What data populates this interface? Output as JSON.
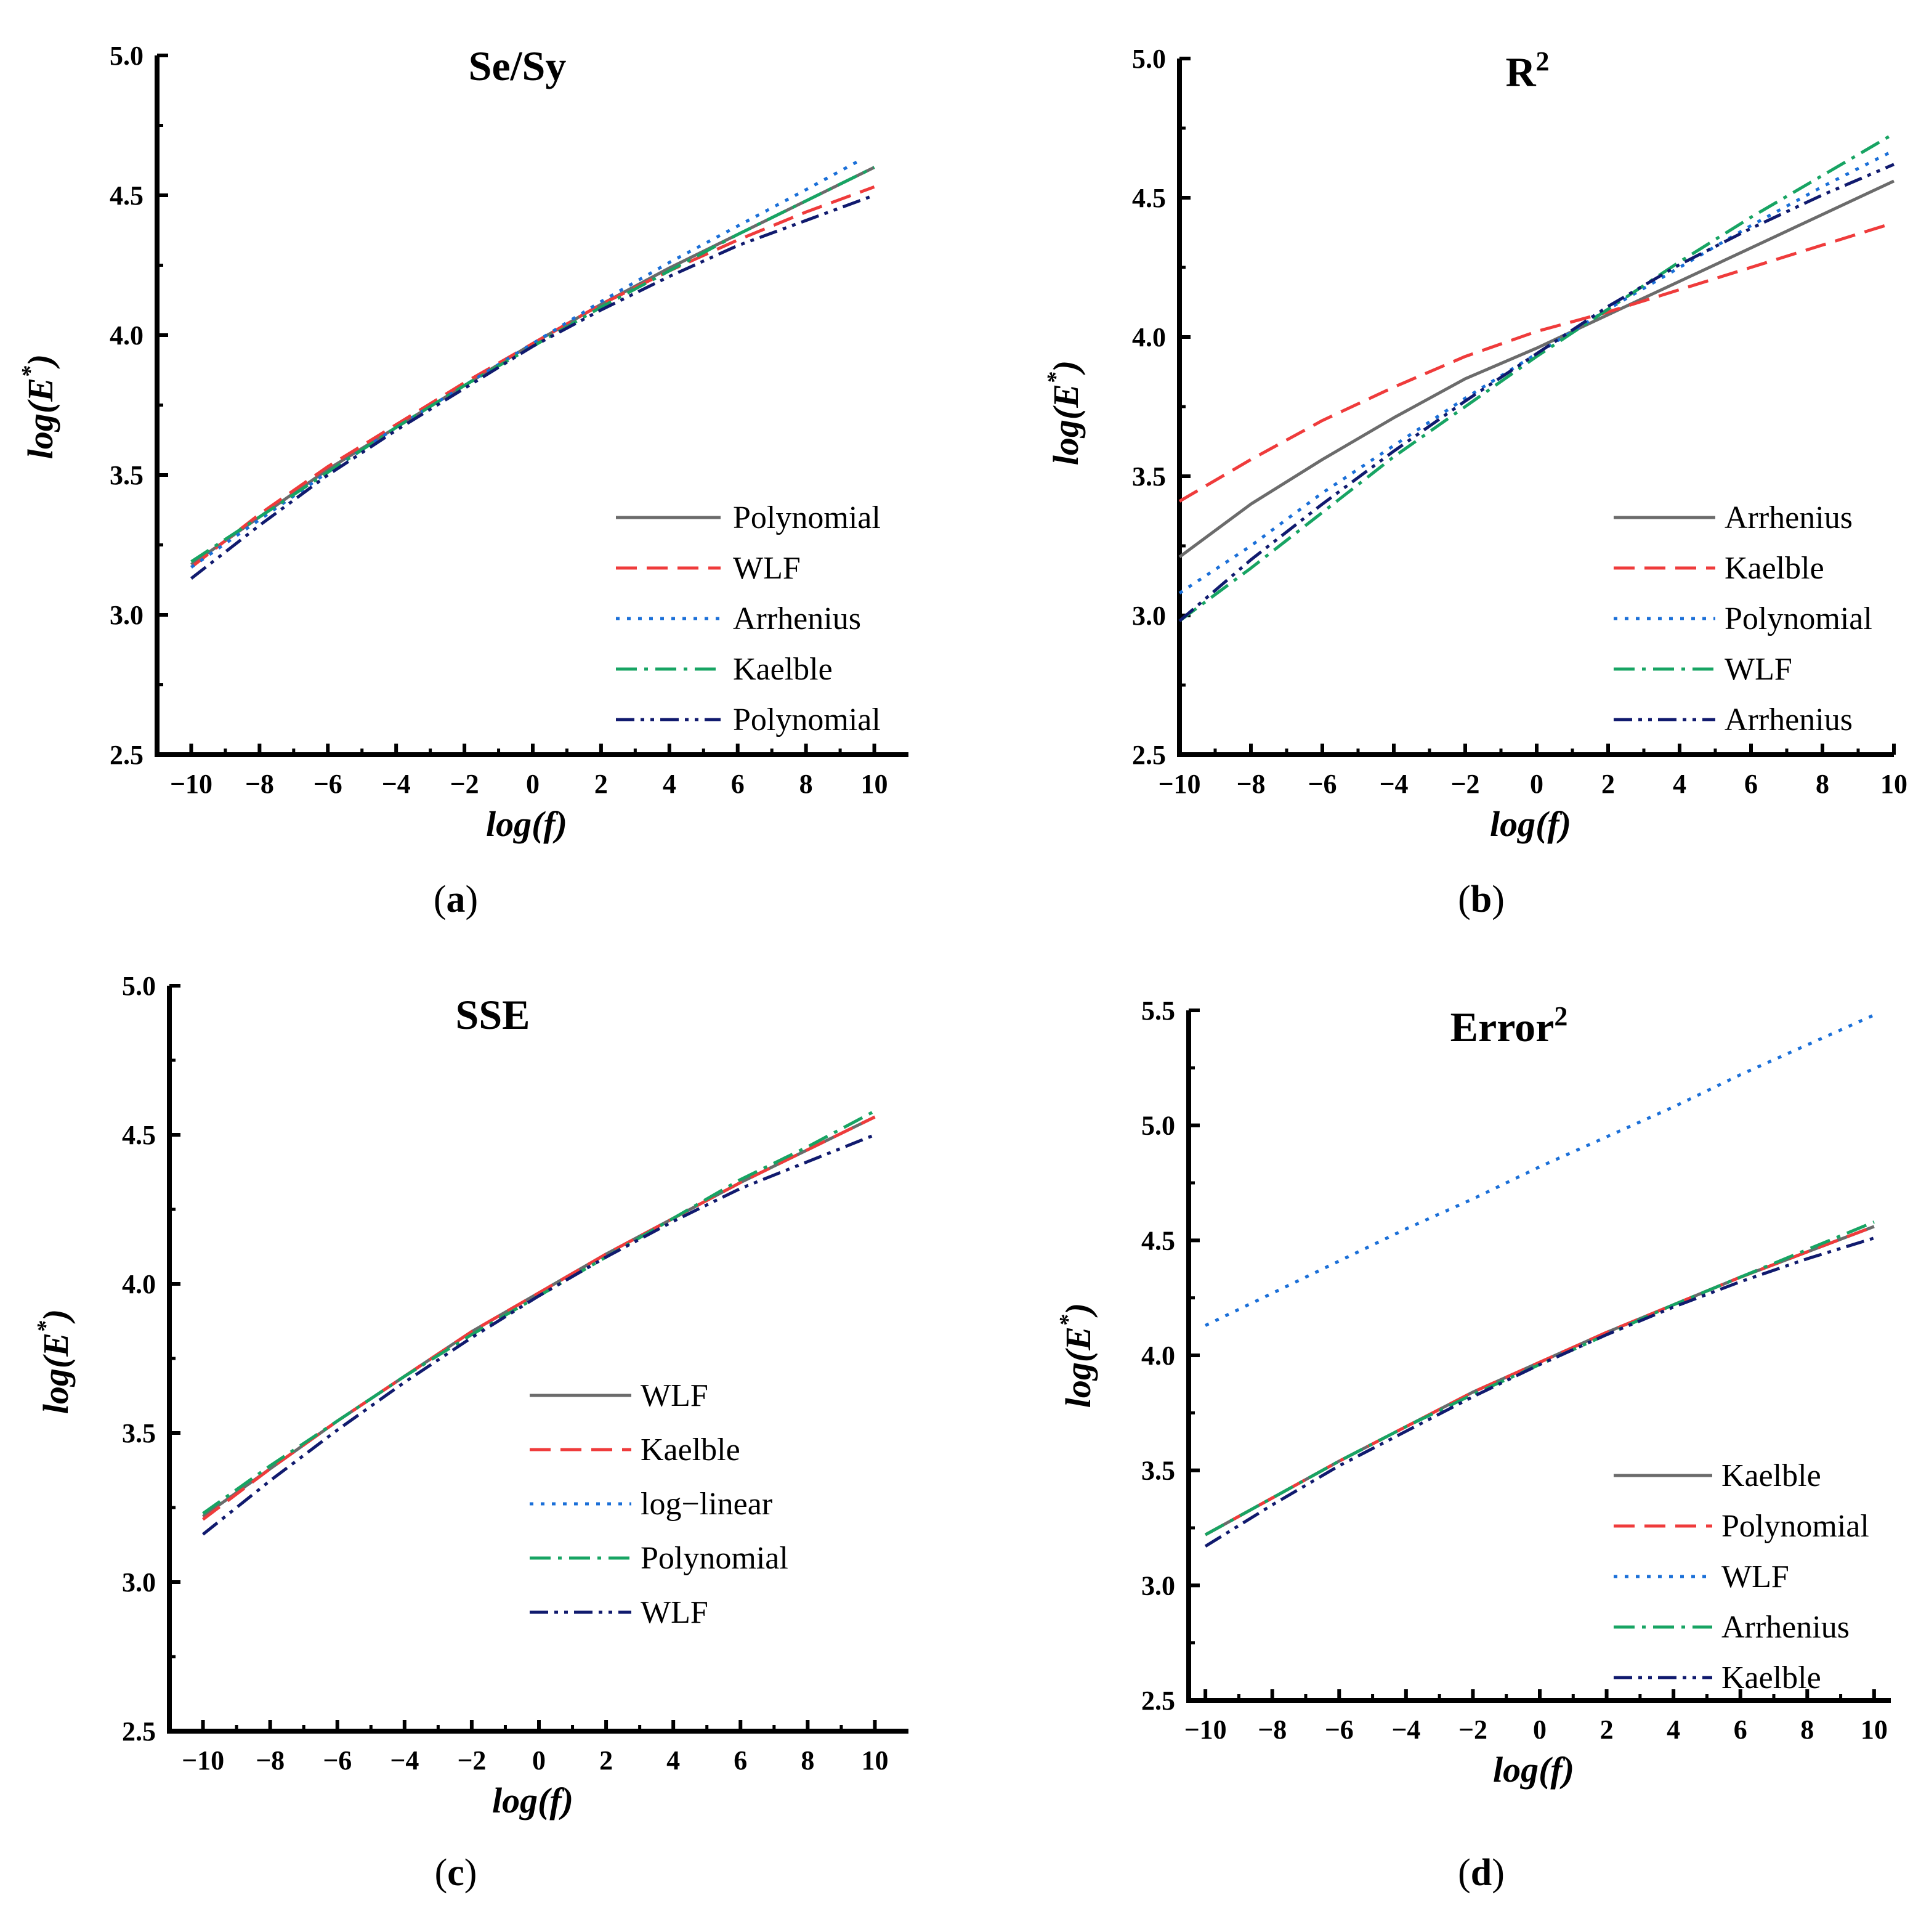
{
  "colors": {
    "solid": "#6b6b6b",
    "dashed": "#ef3b3b",
    "dotted": "#1a6fd8",
    "dashdot": "#17a463",
    "dashdotdot": "#101a6e"
  },
  "chart_data": [
    {
      "type": "line",
      "caption_letter": "a",
      "title": "Se/Sy",
      "xlabel": "log(f)",
      "ylabel_base": "log(E",
      "ylabel_sup": "*",
      "ylabel_tail": ")",
      "xlim": [
        -11,
        11
      ],
      "ylim": [
        2.5,
        5.0
      ],
      "xticks": [
        -10,
        -8,
        -6,
        -4,
        -2,
        0,
        2,
        4,
        6,
        8,
        10
      ],
      "yticks": [
        2.5,
        3.0,
        3.5,
        4.0,
        4.5,
        5.0
      ],
      "xtick_labels": [
        "−10",
        "−8",
        "−6",
        "−4",
        "−2",
        "0",
        "2",
        "4",
        "6",
        "8",
        "10"
      ],
      "ytick_labels": [
        "2.5",
        "3.0",
        "3.5",
        "4.0",
        "4.5",
        "5.0"
      ],
      "legend_position": "bottom-right",
      "series": [
        {
          "name": "Polynomial",
          "style": "solid",
          "x": [
            -10,
            -8,
            -6,
            -4,
            -2,
            0,
            2,
            4,
            6,
            8,
            10
          ],
          "y": [
            3.18,
            3.35,
            3.52,
            3.67,
            3.82,
            3.97,
            4.11,
            4.24,
            4.36,
            4.48,
            4.6
          ]
        },
        {
          "name": "WLF",
          "style": "dashed",
          "x": [
            -10,
            -8,
            -6,
            -4,
            -2,
            0,
            2,
            4,
            6,
            8,
            10
          ],
          "y": [
            3.17,
            3.36,
            3.53,
            3.68,
            3.83,
            3.97,
            4.11,
            4.23,
            4.34,
            4.44,
            4.53
          ]
        },
        {
          "name": "Arrhenius",
          "style": "dotted",
          "x": [
            -10,
            -8,
            -6,
            -4,
            -2,
            0,
            2,
            4,
            6,
            8,
            9.5
          ],
          "y": [
            3.17,
            3.34,
            3.51,
            3.67,
            3.82,
            3.97,
            4.12,
            4.26,
            4.39,
            4.52,
            4.62
          ]
        },
        {
          "name": "Kaelble",
          "style": "dashdot",
          "x": [
            -10,
            -8,
            -6,
            -4,
            -2,
            0,
            2,
            4,
            6,
            8,
            10
          ],
          "y": [
            3.19,
            3.35,
            3.51,
            3.67,
            3.82,
            3.96,
            4.1,
            4.23,
            4.36,
            4.48,
            4.6
          ]
        },
        {
          "name": "Polynomial",
          "style": "dashdotdot",
          "x": [
            -10,
            -8,
            -6,
            -4,
            -2,
            0,
            2,
            4,
            6,
            8,
            10
          ],
          "y": [
            3.13,
            3.32,
            3.5,
            3.66,
            3.81,
            3.96,
            4.09,
            4.21,
            4.32,
            4.41,
            4.5
          ]
        }
      ]
    },
    {
      "type": "line",
      "caption_letter": "b",
      "title": "R",
      "title_sup": "2",
      "xlabel": "log(f)",
      "ylabel_base": "log(E",
      "ylabel_sup": "*",
      "ylabel_tail": ")",
      "xlim": [
        -10,
        10
      ],
      "ylim": [
        2.5,
        5.0
      ],
      "xticks": [
        -10,
        -8,
        -6,
        -4,
        -2,
        0,
        2,
        4,
        6,
        8,
        10
      ],
      "yticks": [
        2.5,
        3.0,
        3.5,
        4.0,
        4.5,
        5.0
      ],
      "xtick_labels": [
        "−10",
        "−8",
        "−6",
        "−4",
        "−2",
        "0",
        "2",
        "4",
        "6",
        "8",
        "10"
      ],
      "ytick_labels": [
        "2.5",
        "3.0",
        "3.5",
        "4.0",
        "4.5",
        "5.0"
      ],
      "legend_position": "bottom-right",
      "series": [
        {
          "name": "Arrhenius",
          "style": "solid",
          "x": [
            -10,
            -8,
            -6,
            -4,
            -2,
            0,
            2,
            4,
            6,
            8,
            10
          ],
          "y": [
            3.21,
            3.4,
            3.56,
            3.71,
            3.85,
            3.96,
            4.08,
            4.2,
            4.32,
            4.44,
            4.56
          ]
        },
        {
          "name": "Kaelble",
          "style": "dashed",
          "x": [
            -10,
            -8,
            -6,
            -4,
            -2,
            0,
            2,
            4,
            6,
            8,
            10
          ],
          "y": [
            3.41,
            3.56,
            3.7,
            3.82,
            3.93,
            4.02,
            4.09,
            4.17,
            4.25,
            4.33,
            4.41
          ]
        },
        {
          "name": "Polynomial",
          "style": "dotted",
          "x": [
            -10,
            -8,
            -6,
            -4,
            -2,
            0,
            2,
            4,
            6,
            8,
            10
          ],
          "y": [
            3.08,
            3.25,
            3.44,
            3.61,
            3.78,
            3.94,
            4.1,
            4.25,
            4.4,
            4.54,
            4.67
          ]
        },
        {
          "name": "WLF",
          "style": "dashdot",
          "x": [
            -10,
            -8,
            -6,
            -4,
            -2,
            0,
            2,
            4,
            6,
            8,
            10
          ],
          "y": [
            2.98,
            3.17,
            3.37,
            3.57,
            3.75,
            3.93,
            4.1,
            4.27,
            4.43,
            4.58,
            4.73
          ]
        },
        {
          "name": "Arrhenius",
          "style": "dashdotdot",
          "x": [
            -10,
            -8,
            -6,
            -4,
            -2,
            0,
            2,
            4,
            6,
            8,
            10
          ],
          "y": [
            2.98,
            3.2,
            3.4,
            3.59,
            3.77,
            3.94,
            4.11,
            4.26,
            4.39,
            4.51,
            4.62
          ]
        }
      ]
    },
    {
      "type": "line",
      "caption_letter": "c",
      "title": "SSE",
      "xlabel": "log(f)",
      "ylabel_base": "log(E",
      "ylabel_sup": "*",
      "ylabel_tail": ")",
      "xlim": [
        -11,
        11
      ],
      "ylim": [
        2.5,
        5.0
      ],
      "xticks": [
        -10,
        -8,
        -6,
        -4,
        -2,
        0,
        2,
        4,
        6,
        8,
        10
      ],
      "yticks": [
        2.5,
        3.0,
        3.5,
        4.0,
        4.5,
        5.0
      ],
      "xtick_labels": [
        "−10",
        "−8",
        "−6",
        "−4",
        "−2",
        "0",
        "2",
        "4",
        "6",
        "8",
        "10"
      ],
      "ytick_labels": [
        "2.5",
        "3.0",
        "3.5",
        "4.0",
        "4.5",
        "5.0"
      ],
      "legend_position": "bottom-right",
      "series": [
        {
          "name": "WLF",
          "style": "solid",
          "x": [
            -10,
            -8,
            -6,
            -4,
            -2,
            0,
            2,
            4,
            6,
            8,
            10
          ],
          "y": [
            3.22,
            3.38,
            3.54,
            3.69,
            3.84,
            3.97,
            4.1,
            4.22,
            4.34,
            4.45,
            4.56
          ]
        },
        {
          "name": "Kaelble",
          "style": "dashed",
          "x": [
            -10,
            -8,
            -6,
            -4,
            -2,
            0,
            2,
            4,
            6,
            8,
            10
          ],
          "y": [
            3.21,
            3.38,
            3.54,
            3.69,
            3.84,
            3.97,
            4.1,
            4.22,
            4.34,
            4.45,
            4.56
          ]
        },
        {
          "name": "log−linear",
          "style": "dotted",
          "x": [],
          "y": []
        },
        {
          "name": "Polynomial",
          "style": "dashdot",
          "x": [
            -10,
            -8,
            -6,
            -4,
            -2,
            0,
            2,
            4,
            6,
            8,
            10
          ],
          "y": [
            3.23,
            3.39,
            3.54,
            3.69,
            3.83,
            3.96,
            4.09,
            4.22,
            4.35,
            4.46,
            4.58
          ]
        },
        {
          "name": "WLF",
          "style": "dashdotdot",
          "x": [
            -10,
            -8,
            -6,
            -4,
            -2,
            0,
            2,
            4,
            6,
            8,
            10
          ],
          "y": [
            3.16,
            3.34,
            3.51,
            3.67,
            3.82,
            3.96,
            4.09,
            4.21,
            4.32,
            4.41,
            4.5
          ]
        }
      ]
    },
    {
      "type": "line",
      "caption_letter": "d",
      "title": "Error",
      "title_sup": "2",
      "xlabel": "log(f)",
      "ylabel_base": "log(E",
      "ylabel_sup": "*",
      "ylabel_tail": ")",
      "xlim": [
        -10.5,
        10.5
      ],
      "ylim": [
        2.5,
        5.5
      ],
      "xticks": [
        -10,
        -8,
        -6,
        -4,
        -2,
        0,
        2,
        4,
        6,
        8,
        10
      ],
      "yticks": [
        2.5,
        3.0,
        3.5,
        4.0,
        4.5,
        5.0,
        5.5
      ],
      "xtick_labels": [
        "−10",
        "−8",
        "−6",
        "−4",
        "−2",
        "0",
        "2",
        "4",
        "6",
        "8",
        "10"
      ],
      "ytick_labels": [
        "2.5",
        "3.0",
        "3.5",
        "4.0",
        "4.5",
        "5.0",
        "5.5"
      ],
      "legend_position": "bottom-right",
      "series": [
        {
          "name": "Kaelble",
          "style": "solid",
          "x": [
            -10,
            -8,
            -6,
            -4,
            -2,
            0,
            2,
            4,
            6,
            8,
            10
          ],
          "y": [
            3.22,
            3.38,
            3.54,
            3.69,
            3.84,
            3.97,
            4.1,
            4.22,
            4.34,
            4.45,
            4.56
          ]
        },
        {
          "name": "Polynomial",
          "style": "dashed",
          "x": [
            -10,
            -8,
            -6,
            -4,
            -2,
            0,
            2,
            4,
            6,
            8,
            10
          ],
          "y": [
            3.22,
            3.38,
            3.54,
            3.69,
            3.84,
            3.97,
            4.1,
            4.22,
            4.34,
            4.45,
            4.56
          ]
        },
        {
          "name": "WLF",
          "style": "dotted",
          "x": [
            -10,
            -8,
            -6,
            -4,
            -2,
            0,
            2,
            4,
            6,
            8,
            10
          ],
          "y": [
            4.13,
            4.27,
            4.41,
            4.55,
            4.68,
            4.82,
            4.95,
            5.08,
            5.22,
            5.35,
            5.48
          ]
        },
        {
          "name": "Arrhenius",
          "style": "dashdot",
          "x": [
            -10,
            -8,
            -6,
            -4,
            -2,
            0,
            2,
            4,
            6,
            8,
            10
          ],
          "y": [
            3.22,
            3.38,
            3.54,
            3.69,
            3.83,
            3.96,
            4.09,
            4.22,
            4.34,
            4.46,
            4.58
          ]
        },
        {
          "name": "Kaelble",
          "style": "dashdotdot",
          "x": [
            -10,
            -8,
            -6,
            -4,
            -2,
            0,
            2,
            4,
            6,
            8,
            10
          ],
          "y": [
            3.17,
            3.35,
            3.52,
            3.67,
            3.82,
            3.96,
            4.09,
            4.21,
            4.32,
            4.42,
            4.51
          ]
        }
      ]
    }
  ]
}
